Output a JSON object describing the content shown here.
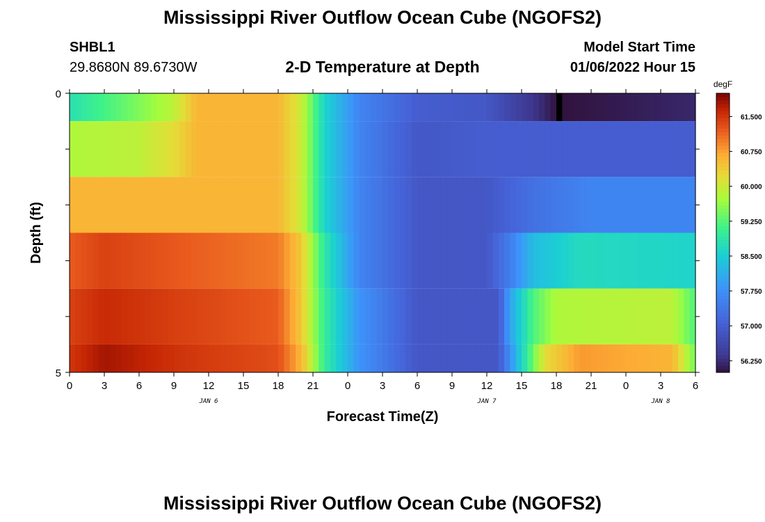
{
  "page": {
    "title": "Mississippi River Outflow Ocean Cube (NGOFS2)",
    "station": "SHBL1",
    "coords": "29.8680N  89.6730W",
    "model_start_label": "Model Start Time",
    "model_start_value": "01/06/2022 Hour 15",
    "repeat_title": "Mississippi River Outflow Ocean Cube (NGOFS2)"
  },
  "chart_data": {
    "type": "heatmap",
    "title": "2-D Temperature at Depth",
    "xlabel": "Forecast Time(Z)",
    "ylabel": "Depth (ft)",
    "x_tick_labels": [
      "0",
      "3",
      "6",
      "9",
      "12",
      "15",
      "18",
      "21",
      "0",
      "3",
      "6",
      "9",
      "12",
      "15",
      "18",
      "21",
      "0",
      "3",
      "6"
    ],
    "x_range_hours": [
      0,
      54
    ],
    "date_labels": [
      {
        "text": "JAN 6",
        "hour": 12
      },
      {
        "text": "JAN 7",
        "hour": 36
      },
      {
        "text": "JAN 8",
        "hour": 51
      }
    ],
    "y_range": [
      0,
      5
    ],
    "y_tick_labels": [
      "0",
      "5"
    ],
    "colorbar": {
      "unit": "degF",
      "min": 56.0,
      "max": 62.0,
      "tick_values": [
        56.25,
        57.0,
        57.75,
        58.5,
        59.25,
        60.0,
        60.75,
        61.5
      ],
      "tick_labels": [
        "56.250",
        "57.000",
        "57.750",
        "58.500",
        "59.250",
        "60.000",
        "60.750",
        "61.500"
      ]
    },
    "depth_layers": [
      {
        "name": "layer-1",
        "y0": 0.0,
        "y1": 0.5,
        "knots": [
          [
            0,
            58.8
          ],
          [
            6,
            59.5
          ],
          [
            9,
            59.9
          ],
          [
            11,
            60.6
          ],
          [
            18,
            60.6
          ],
          [
            20,
            60.0
          ],
          [
            22,
            58.6
          ],
          [
            25,
            57.6
          ],
          [
            30,
            57.0
          ],
          [
            36,
            56.9
          ],
          [
            38,
            56.6
          ],
          [
            41,
            56.2
          ],
          [
            42,
            56.0
          ],
          [
            54,
            56.2
          ]
        ]
      },
      {
        "name": "layer-2",
        "y0": 0.5,
        "y1": 1.5,
        "knots": [
          [
            0,
            59.8
          ],
          [
            6,
            59.9
          ],
          [
            9,
            60.2
          ],
          [
            11,
            60.6
          ],
          [
            18,
            60.6
          ],
          [
            20,
            60.0
          ],
          [
            22,
            58.6
          ],
          [
            25,
            57.6
          ],
          [
            30,
            56.9
          ],
          [
            36,
            57.0
          ],
          [
            38,
            57.0
          ],
          [
            54,
            57.0
          ]
        ]
      },
      {
        "name": "layer-3",
        "y0": 1.5,
        "y1": 2.5,
        "knots": [
          [
            0,
            60.6
          ],
          [
            10,
            60.6
          ],
          [
            18,
            60.6
          ],
          [
            20,
            60.0
          ],
          [
            22,
            58.6
          ],
          [
            25,
            57.6
          ],
          [
            30,
            56.9
          ],
          [
            36,
            56.9
          ],
          [
            40,
            57.3
          ],
          [
            45,
            57.6
          ],
          [
            54,
            57.6
          ]
        ]
      },
      {
        "name": "layer-4",
        "y0": 2.5,
        "y1": 3.5,
        "knots": [
          [
            0,
            61.2
          ],
          [
            3,
            61.4
          ],
          [
            10,
            61.2
          ],
          [
            18,
            61.0
          ],
          [
            20,
            60.4
          ],
          [
            22,
            58.9
          ],
          [
            25,
            57.6
          ],
          [
            30,
            56.9
          ],
          [
            36,
            56.9
          ],
          [
            38,
            57.5
          ],
          [
            40,
            58.3
          ],
          [
            44,
            58.7
          ],
          [
            54,
            58.6
          ]
        ]
      },
      {
        "name": "layer-5",
        "y0": 3.5,
        "y1": 4.5,
        "knots": [
          [
            0,
            61.4
          ],
          [
            3,
            61.6
          ],
          [
            10,
            61.4
          ],
          [
            18,
            61.2
          ],
          [
            20,
            60.4
          ],
          [
            22,
            59.0
          ],
          [
            25,
            57.8
          ],
          [
            30,
            56.9
          ],
          [
            37,
            56.9
          ],
          [
            38,
            58.0
          ],
          [
            40,
            59.2
          ],
          [
            42,
            59.8
          ],
          [
            52,
            59.9
          ],
          [
            54,
            59.2
          ]
        ]
      },
      {
        "name": "layer-6",
        "y0": 4.5,
        "y1": 5.0,
        "knots": [
          [
            0,
            61.5
          ],
          [
            3,
            61.8
          ],
          [
            10,
            61.5
          ],
          [
            18,
            61.3
          ],
          [
            20,
            60.6
          ],
          [
            22,
            59.0
          ],
          [
            25,
            57.8
          ],
          [
            30,
            56.9
          ],
          [
            37,
            56.9
          ],
          [
            39,
            58.6
          ],
          [
            40,
            59.4
          ],
          [
            41,
            60.2
          ],
          [
            44,
            60.8
          ],
          [
            52,
            60.6
          ],
          [
            54,
            59.4
          ]
        ]
      }
    ],
    "missing_cell": {
      "hour": 42,
      "layer": "layer-1"
    }
  }
}
